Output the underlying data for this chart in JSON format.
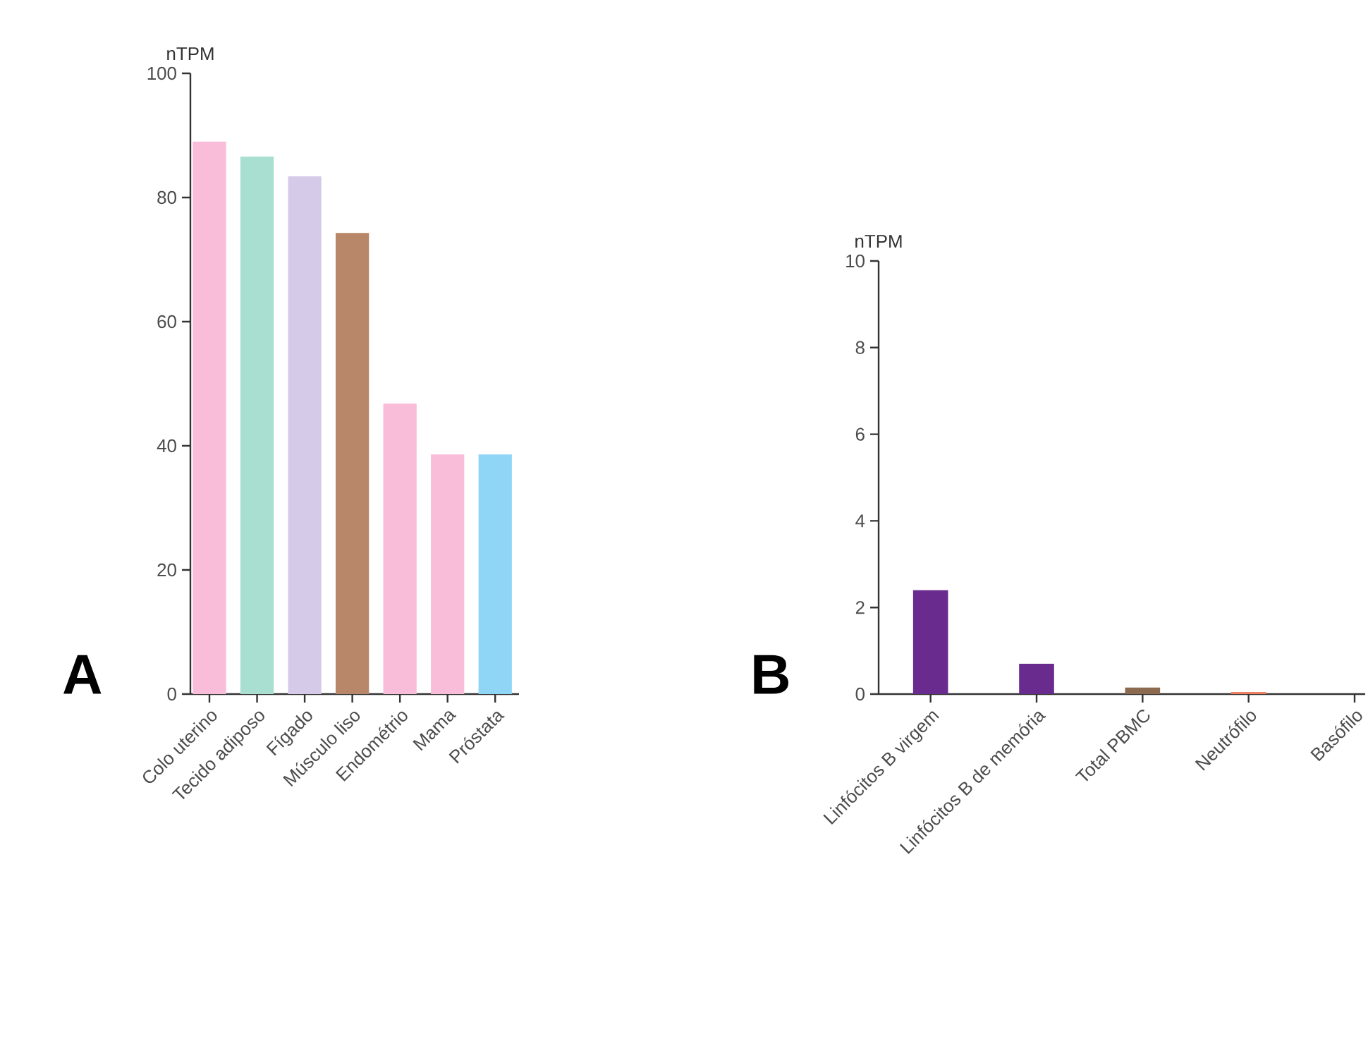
{
  "chart_data": [
    {
      "type": "bar",
      "ylabel": "nTPM",
      "annotations": [
        "A"
      ],
      "categories": [
        "Colo uterino",
        "Tecido adiposo",
        "Fígado",
        "Músculo liso",
        "Endométrio",
        "Mama",
        "Próstata"
      ],
      "values": [
        89,
        86.6,
        83.4,
        74.3,
        46.8,
        38.6,
        38.6
      ],
      "colors": [
        "#f9bcd9",
        "#a8dfd0",
        "#d5cbe9",
        "#b8876a",
        "#f9bcd9",
        "#f9bcd9",
        "#8fd6f6"
      ],
      "ylim": [
        0,
        100
      ],
      "yticks": [
        0,
        20,
        40,
        60,
        80,
        100
      ],
      "grid": false
    },
    {
      "type": "bar",
      "ylabel": "nTPM",
      "annotations": [
        "B"
      ],
      "categories": [
        "Linfócitos B virgem",
        "Linfócitos B de memória",
        "Total PBMC",
        "Neutrófilo",
        "Basófilo"
      ],
      "values": [
        2.4,
        0.7,
        0.15,
        0.05,
        0
      ],
      "colors": [
        "#6a2b8f",
        "#6a2b8f",
        "#8b6a4f",
        "#f08060",
        "#6a2b8f"
      ],
      "ylim": [
        0,
        10
      ],
      "yticks": [
        0,
        2,
        4,
        6,
        8,
        10
      ],
      "grid": false
    }
  ]
}
